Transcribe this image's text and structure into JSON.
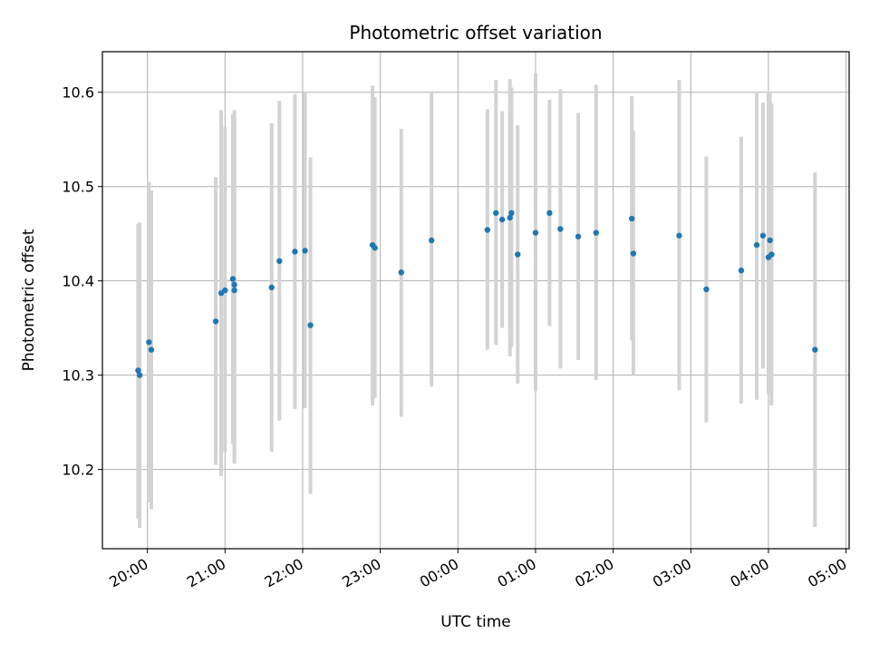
{
  "chart_data": {
    "type": "scatter",
    "title": "Photometric offset variation",
    "xlabel": "UTC time",
    "ylabel": "Photometric offset",
    "grid": true,
    "x_unit": "UTC time (hours after 00:00 of first day)",
    "xlim": [
      -4.58,
      5.04
    ],
    "ylim": [
      10.116,
      10.643
    ],
    "x_ticks": [
      {
        "value": -4.0,
        "label": "20:00"
      },
      {
        "value": -3.0,
        "label": "21:00"
      },
      {
        "value": -2.0,
        "label": "22:00"
      },
      {
        "value": -1.0,
        "label": "23:00"
      },
      {
        "value": 0.0,
        "label": "00:00"
      },
      {
        "value": 1.0,
        "label": "01:00"
      },
      {
        "value": 2.0,
        "label": "02:00"
      },
      {
        "value": 3.0,
        "label": "03:00"
      },
      {
        "value": 4.0,
        "label": "04:00"
      },
      {
        "value": 5.0,
        "label": "05:00"
      }
    ],
    "y_ticks": [
      {
        "value": 10.2,
        "label": "10.2"
      },
      {
        "value": 10.3,
        "label": "10.3"
      },
      {
        "value": 10.4,
        "label": "10.4"
      },
      {
        "value": 10.5,
        "label": "10.5"
      },
      {
        "value": 10.6,
        "label": "10.6"
      }
    ],
    "point_color": "#1f77b4",
    "errorbar_color": "#d3d3d3",
    "points": [
      {
        "x": -4.12,
        "y": 10.305,
        "ylo": 10.148,
        "yhi": 10.46
      },
      {
        "x": -4.1,
        "y": 10.3,
        "ylo": 10.138,
        "yhi": 10.462
      },
      {
        "x": -3.98,
        "y": 10.335,
        "ylo": 10.165,
        "yhi": 10.505
      },
      {
        "x": -3.95,
        "y": 10.327,
        "ylo": 10.158,
        "yhi": 10.496
      },
      {
        "x": -3.12,
        "y": 10.357,
        "ylo": 10.205,
        "yhi": 10.51
      },
      {
        "x": -3.05,
        "y": 10.387,
        "ylo": 10.193,
        "yhi": 10.581
      },
      {
        "x": -3.0,
        "y": 10.39,
        "ylo": 10.218,
        "yhi": 10.563
      },
      {
        "x": -2.9,
        "y": 10.402,
        "ylo": 10.227,
        "yhi": 10.577
      },
      {
        "x": -2.88,
        "y": 10.396,
        "ylo": 10.212,
        "yhi": 10.581
      },
      {
        "x": -2.88,
        "y": 10.39,
        "ylo": 10.206,
        "yhi": 10.574
      },
      {
        "x": -2.4,
        "y": 10.393,
        "ylo": 10.219,
        "yhi": 10.567
      },
      {
        "x": -2.3,
        "y": 10.421,
        "ylo": 10.252,
        "yhi": 10.591
      },
      {
        "x": -2.1,
        "y": 10.431,
        "ylo": 10.264,
        "yhi": 10.598
      },
      {
        "x": -1.97,
        "y": 10.432,
        "ylo": 10.265,
        "yhi": 10.6
      },
      {
        "x": -1.9,
        "y": 10.353,
        "ylo": 10.174,
        "yhi": 10.531
      },
      {
        "x": -1.1,
        "y": 10.438,
        "ylo": 10.268,
        "yhi": 10.607
      },
      {
        "x": -1.07,
        "y": 10.435,
        "ylo": 10.276,
        "yhi": 10.595
      },
      {
        "x": -0.73,
        "y": 10.409,
        "ylo": 10.256,
        "yhi": 10.561
      },
      {
        "x": -0.34,
        "y": 10.443,
        "ylo": 10.288,
        "yhi": 10.601
      },
      {
        "x": 0.38,
        "y": 10.454,
        "ylo": 10.327,
        "yhi": 10.582
      },
      {
        "x": 0.49,
        "y": 10.472,
        "ylo": 10.332,
        "yhi": 10.613
      },
      {
        "x": 0.57,
        "y": 10.465,
        "ylo": 10.35,
        "yhi": 10.58
      },
      {
        "x": 0.67,
        "y": 10.467,
        "ylo": 10.32,
        "yhi": 10.614
      },
      {
        "x": 0.69,
        "y": 10.472,
        "ylo": 10.33,
        "yhi": 10.605
      },
      {
        "x": 0.77,
        "y": 10.428,
        "ylo": 10.291,
        "yhi": 10.565
      },
      {
        "x": 1.0,
        "y": 10.451,
        "ylo": 10.283,
        "yhi": 10.62
      },
      {
        "x": 1.18,
        "y": 10.472,
        "ylo": 10.352,
        "yhi": 10.592
      },
      {
        "x": 1.32,
        "y": 10.455,
        "ylo": 10.307,
        "yhi": 10.603
      },
      {
        "x": 1.55,
        "y": 10.447,
        "ylo": 10.316,
        "yhi": 10.578
      },
      {
        "x": 1.78,
        "y": 10.451,
        "ylo": 10.295,
        "yhi": 10.608
      },
      {
        "x": 2.24,
        "y": 10.466,
        "ylo": 10.337,
        "yhi": 10.596
      },
      {
        "x": 2.26,
        "y": 10.429,
        "ylo": 10.3,
        "yhi": 10.559
      },
      {
        "x": 2.85,
        "y": 10.448,
        "ylo": 10.284,
        "yhi": 10.613
      },
      {
        "x": 3.2,
        "y": 10.391,
        "ylo": 10.25,
        "yhi": 10.532
      },
      {
        "x": 3.65,
        "y": 10.411,
        "ylo": 10.27,
        "yhi": 10.553
      },
      {
        "x": 3.85,
        "y": 10.438,
        "ylo": 10.274,
        "yhi": 10.601
      },
      {
        "x": 3.93,
        "y": 10.448,
        "ylo": 10.307,
        "yhi": 10.589
      },
      {
        "x": 4.0,
        "y": 10.425,
        "ylo": 10.28,
        "yhi": 10.601
      },
      {
        "x": 4.02,
        "y": 10.443,
        "ylo": 10.284,
        "yhi": 10.601
      },
      {
        "x": 4.04,
        "y": 10.428,
        "ylo": 10.268,
        "yhi": 10.588
      },
      {
        "x": 4.6,
        "y": 10.327,
        "ylo": 10.139,
        "yhi": 10.515
      }
    ]
  }
}
